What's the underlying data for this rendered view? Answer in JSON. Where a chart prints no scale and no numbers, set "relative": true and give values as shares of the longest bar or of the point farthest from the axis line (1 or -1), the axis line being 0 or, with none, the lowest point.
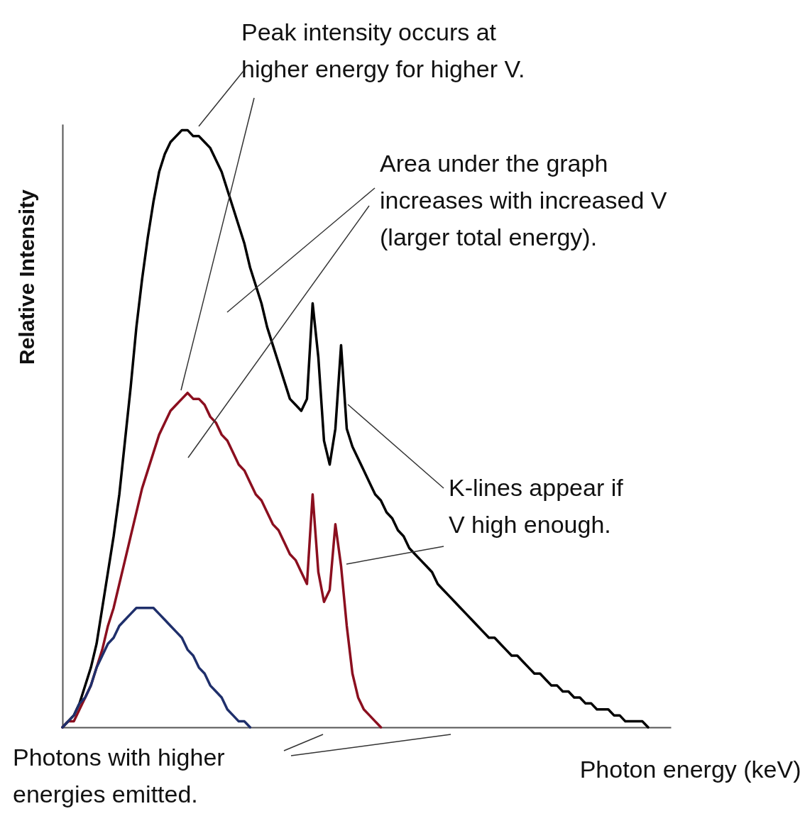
{
  "chart_data": {
    "type": "line",
    "relative": true,
    "xlabel": "Photon energy (keV)",
    "ylabel": "Relative Intensity",
    "categories": [
      null,
      null,
      null,
      null,
      null,
      null,
      null,
      null,
      null,
      null,
      null,
      null,
      null,
      null,
      null,
      null,
      null,
      null,
      null,
      null,
      null,
      null,
      null,
      null,
      null,
      null,
      null,
      null,
      null,
      null,
      null,
      null,
      null,
      null,
      null,
      null,
      null,
      null,
      null,
      null,
      null,
      null,
      null,
      null,
      null,
      null,
      null,
      null,
      null,
      null,
      null,
      null,
      null,
      null,
      null,
      null,
      null,
      null,
      null,
      null,
      null,
      null,
      null,
      null,
      null,
      null,
      null,
      null,
      null,
      null,
      null,
      null,
      null,
      null,
      null,
      null,
      null,
      null,
      null,
      null,
      null,
      null,
      null,
      null,
      null,
      null,
      null,
      null,
      null,
      null,
      null,
      null,
      null,
      null,
      null,
      null,
      null,
      null,
      null,
      null,
      null,
      null,
      null,
      null
    ],
    "series": [
      {
        "color": "#000000",
        "values": [
          0,
          0.01,
          0.02,
          0.04,
          0.07,
          0.1,
          0.14,
          0.2,
          0.26,
          0.32,
          0.39,
          0.48,
          0.57,
          0.67,
          0.75,
          0.82,
          0.88,
          0.93,
          0.96,
          0.98,
          0.99,
          1,
          1,
          0.99,
          0.99,
          0.98,
          0.97,
          0.95,
          0.93,
          0.9,
          0.87,
          0.84,
          0.81,
          0.77,
          0.74,
          0.71,
          0.67,
          0.64,
          0.61,
          0.58,
          0.55,
          0.54,
          0.53,
          0.55,
          0.71,
          0.62,
          0.48,
          0.44,
          0.5,
          0.64,
          0.5,
          0.47,
          0.45,
          0.43,
          0.41,
          0.39,
          0.38,
          0.36,
          0.35,
          0.33,
          0.32,
          0.3,
          0.29,
          0.28,
          0.27,
          0.26,
          0.24,
          0.23,
          0.22,
          0.21,
          0.2,
          0.19,
          0.18,
          0.17,
          0.16,
          0.15,
          0.15,
          0.14,
          0.13,
          0.12,
          0.12,
          0.11,
          0.1,
          0.09,
          0.09,
          0.08,
          0.07,
          0.07,
          0.06,
          0.06,
          0.05,
          0.05,
          0.04,
          0.04,
          0.03,
          0.03,
          0.03,
          0.02,
          0.02,
          0.01,
          0.01,
          0.01,
          0.01,
          0
        ]
      },
      {
        "color": "#8b0f1f",
        "values": [
          0,
          0.01,
          0.01,
          0.03,
          0.05,
          0.07,
          0.1,
          0.13,
          0.17,
          0.2,
          0.24,
          0.28,
          0.32,
          0.36,
          0.4,
          0.43,
          0.46,
          0.49,
          0.51,
          0.53,
          0.54,
          0.55,
          0.56,
          0.55,
          0.55,
          0.54,
          0.52,
          0.51,
          0.49,
          0.48,
          0.46,
          0.44,
          0.43,
          0.41,
          0.39,
          0.38,
          0.36,
          0.34,
          0.33,
          0.31,
          0.29,
          0.28,
          0.26,
          0.24,
          0.39,
          0.26,
          0.21,
          0.23,
          0.34,
          0.27,
          0.17,
          0.09,
          0.05,
          0.03,
          0.02,
          0.01,
          0,
          null,
          null,
          null,
          null,
          null,
          null,
          null,
          null,
          null,
          null,
          null,
          null,
          null,
          null,
          null,
          null,
          null,
          null,
          null,
          null,
          null,
          null,
          null,
          null,
          null,
          null,
          null,
          null,
          null,
          null,
          null,
          null,
          null,
          null,
          null,
          null,
          null,
          null,
          null,
          null,
          null,
          null,
          null,
          null,
          null,
          null,
          null
        ]
      },
      {
        "color": "#1f2f6b",
        "values": [
          0,
          0.01,
          0.02,
          0.04,
          0.05,
          0.07,
          0.1,
          0.12,
          0.14,
          0.15,
          0.17,
          0.18,
          0.19,
          0.2,
          0.2,
          0.2,
          0.2,
          0.19,
          0.18,
          0.17,
          0.16,
          0.15,
          0.13,
          0.12,
          0.1,
          0.09,
          0.07,
          0.06,
          0.05,
          0.03,
          0.02,
          0.01,
          0.01,
          0,
          null,
          null,
          null,
          null,
          null,
          null,
          null,
          null,
          null,
          null,
          null,
          null,
          null,
          null,
          null,
          null,
          null,
          null,
          null,
          null,
          null,
          null,
          null,
          null,
          null,
          null,
          null,
          null,
          null,
          null,
          null,
          null,
          null,
          null,
          null,
          null,
          null,
          null,
          null,
          null,
          null,
          null,
          null,
          null,
          null,
          null,
          null,
          null,
          null,
          null,
          null,
          null,
          null,
          null,
          null,
          null,
          null,
          null,
          null,
          null,
          null,
          null,
          null,
          null,
          null,
          null,
          null,
          null,
          null,
          null
        ]
      }
    ],
    "annotations": [
      "Peak intensity occurs at\nhigher energy for higher V.",
      "Area under the graph\nincreases with increased V\n(larger total energy).",
      "K-lines appear if\nV high enough.",
      "Photons with higher\nenergies emitted."
    ]
  }
}
